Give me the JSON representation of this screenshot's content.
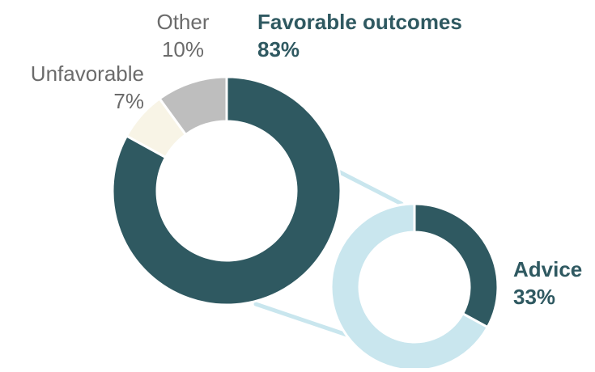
{
  "chart_data": [
    {
      "type": "pie",
      "slices": [
        {
          "label": "Favorable outcomes",
          "value": 83,
          "value_label": "83%",
          "color": "#2f5961"
        },
        {
          "label": "Unfavorable",
          "value": 7,
          "value_label": "7%",
          "color": "#f8f4e6"
        },
        {
          "label": "Other",
          "value": 10,
          "value_label": "10%",
          "color": "#bebebe"
        }
      ],
      "donut": true
    },
    {
      "type": "pie",
      "slices": [
        {
          "label": "Advice",
          "value": 33,
          "value_label": "33%",
          "color": "#2f5961"
        },
        {
          "label": "",
          "value": 67,
          "value_label": "",
          "color": "#c9e6ee"
        }
      ],
      "donut": true
    }
  ],
  "connector_color": "#c9e6ee"
}
